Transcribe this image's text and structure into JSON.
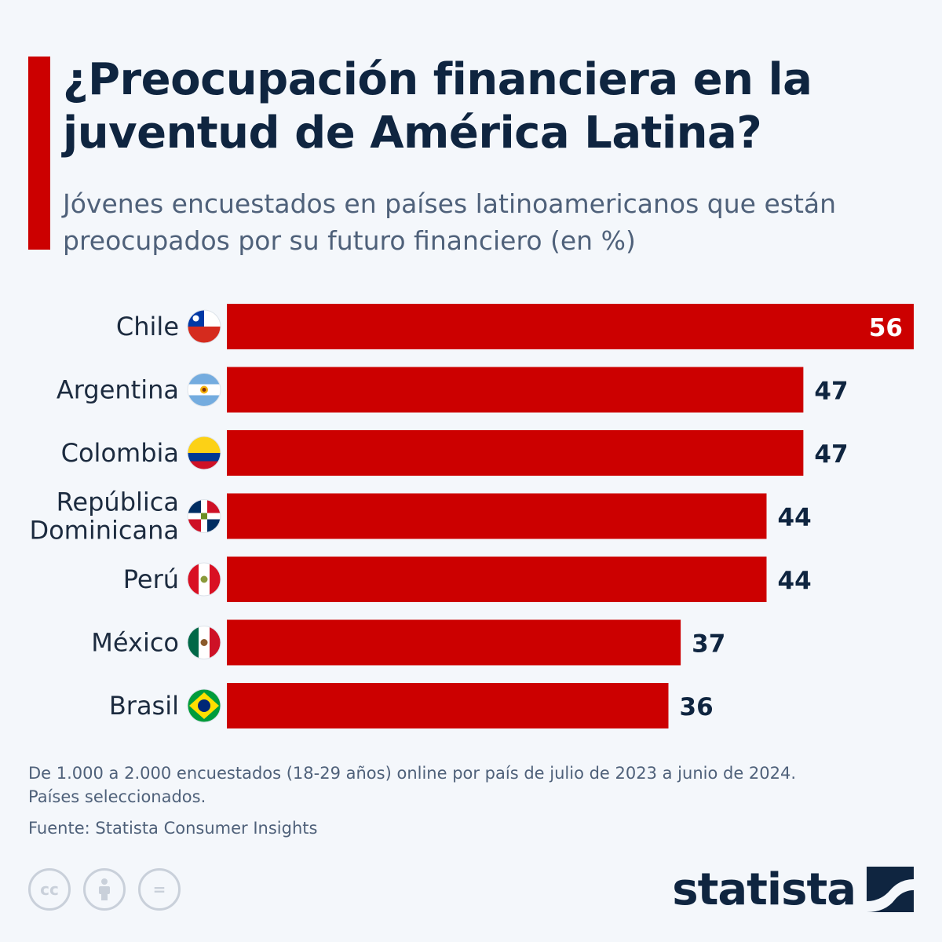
{
  "header": {
    "title": "¿Preocupación financiera en la juventud de América Latina?",
    "subtitle": "Jóvenes encuestados en países latinoamericanos que están preocupados por su futuro financiero (en %)"
  },
  "colors": {
    "bar": "#cc0000",
    "accent": "#cc0000",
    "label_dark": "#0f2540",
    "label_light": "#ffffff"
  },
  "chart_data": {
    "type": "bar",
    "orientation": "horizontal",
    "categories": [
      "Chile",
      "Argentina",
      "Colombia",
      "República Dominicana",
      "Perú",
      "México",
      "Brasil"
    ],
    "category_lines": [
      [
        "Chile"
      ],
      [
        "Argentina"
      ],
      [
        "Colombia"
      ],
      [
        "República",
        "Dominicana"
      ],
      [
        "Perú"
      ],
      [
        "México"
      ],
      [
        "Brasil"
      ]
    ],
    "flag_icons": [
      "chile-flag-icon",
      "argentina-flag-icon",
      "colombia-flag-icon",
      "dominican-republic-flag-icon",
      "peru-flag-icon",
      "mexico-flag-icon",
      "brazil-flag-icon"
    ],
    "values": [
      56,
      47,
      47,
      44,
      44,
      37,
      36
    ],
    "xlim": [
      0,
      56
    ],
    "grid": false,
    "legend": "none",
    "data_labels": true
  },
  "footer": {
    "note_line1": "De 1.000 a 2.000 encuestados (18-29 años) online por país de julio de 2023 a junio de 2024.",
    "note_line2": "Países seleccionados.",
    "source": "Fuente: Statista Consumer Insights",
    "license_icons": [
      "creative-commons-icon",
      "attribution-icon",
      "no-derivatives-icon"
    ],
    "license_cc": "cc",
    "license_nd": "=",
    "brand": "statista"
  }
}
